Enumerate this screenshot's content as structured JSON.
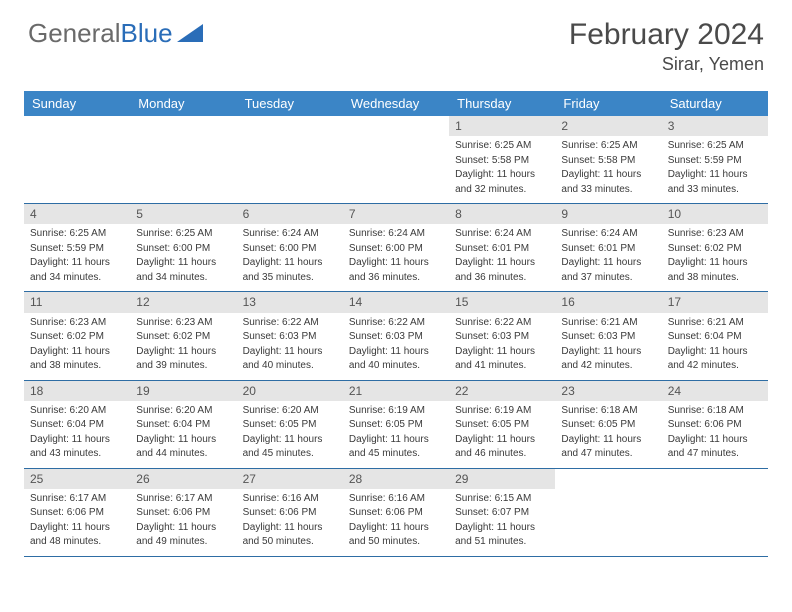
{
  "logo": {
    "text1": "General",
    "text2": "Blue"
  },
  "title": "February 2024",
  "location": "Sirar, Yemen",
  "colors": {
    "header_bg": "#3b85c6",
    "header_text": "#ffffff",
    "daynum_bg": "#e5e5e5",
    "week_border": "#2e6da4",
    "logo_gray": "#6a6a6a",
    "logo_blue": "#2a6db8"
  },
  "day_headers": [
    "Sunday",
    "Monday",
    "Tuesday",
    "Wednesday",
    "Thursday",
    "Friday",
    "Saturday"
  ],
  "weeks": [
    [
      null,
      null,
      null,
      null,
      {
        "n": "1",
        "sr": "Sunrise: 6:25 AM",
        "ss": "Sunset: 5:58 PM",
        "d1": "Daylight: 11 hours",
        "d2": "and 32 minutes."
      },
      {
        "n": "2",
        "sr": "Sunrise: 6:25 AM",
        "ss": "Sunset: 5:58 PM",
        "d1": "Daylight: 11 hours",
        "d2": "and 33 minutes."
      },
      {
        "n": "3",
        "sr": "Sunrise: 6:25 AM",
        "ss": "Sunset: 5:59 PM",
        "d1": "Daylight: 11 hours",
        "d2": "and 33 minutes."
      }
    ],
    [
      {
        "n": "4",
        "sr": "Sunrise: 6:25 AM",
        "ss": "Sunset: 5:59 PM",
        "d1": "Daylight: 11 hours",
        "d2": "and 34 minutes."
      },
      {
        "n": "5",
        "sr": "Sunrise: 6:25 AM",
        "ss": "Sunset: 6:00 PM",
        "d1": "Daylight: 11 hours",
        "d2": "and 34 minutes."
      },
      {
        "n": "6",
        "sr": "Sunrise: 6:24 AM",
        "ss": "Sunset: 6:00 PM",
        "d1": "Daylight: 11 hours",
        "d2": "and 35 minutes."
      },
      {
        "n": "7",
        "sr": "Sunrise: 6:24 AM",
        "ss": "Sunset: 6:00 PM",
        "d1": "Daylight: 11 hours",
        "d2": "and 36 minutes."
      },
      {
        "n": "8",
        "sr": "Sunrise: 6:24 AM",
        "ss": "Sunset: 6:01 PM",
        "d1": "Daylight: 11 hours",
        "d2": "and 36 minutes."
      },
      {
        "n": "9",
        "sr": "Sunrise: 6:24 AM",
        "ss": "Sunset: 6:01 PM",
        "d1": "Daylight: 11 hours",
        "d2": "and 37 minutes."
      },
      {
        "n": "10",
        "sr": "Sunrise: 6:23 AM",
        "ss": "Sunset: 6:02 PM",
        "d1": "Daylight: 11 hours",
        "d2": "and 38 minutes."
      }
    ],
    [
      {
        "n": "11",
        "sr": "Sunrise: 6:23 AM",
        "ss": "Sunset: 6:02 PM",
        "d1": "Daylight: 11 hours",
        "d2": "and 38 minutes."
      },
      {
        "n": "12",
        "sr": "Sunrise: 6:23 AM",
        "ss": "Sunset: 6:02 PM",
        "d1": "Daylight: 11 hours",
        "d2": "and 39 minutes."
      },
      {
        "n": "13",
        "sr": "Sunrise: 6:22 AM",
        "ss": "Sunset: 6:03 PM",
        "d1": "Daylight: 11 hours",
        "d2": "and 40 minutes."
      },
      {
        "n": "14",
        "sr": "Sunrise: 6:22 AM",
        "ss": "Sunset: 6:03 PM",
        "d1": "Daylight: 11 hours",
        "d2": "and 40 minutes."
      },
      {
        "n": "15",
        "sr": "Sunrise: 6:22 AM",
        "ss": "Sunset: 6:03 PM",
        "d1": "Daylight: 11 hours",
        "d2": "and 41 minutes."
      },
      {
        "n": "16",
        "sr": "Sunrise: 6:21 AM",
        "ss": "Sunset: 6:03 PM",
        "d1": "Daylight: 11 hours",
        "d2": "and 42 minutes."
      },
      {
        "n": "17",
        "sr": "Sunrise: 6:21 AM",
        "ss": "Sunset: 6:04 PM",
        "d1": "Daylight: 11 hours",
        "d2": "and 42 minutes."
      }
    ],
    [
      {
        "n": "18",
        "sr": "Sunrise: 6:20 AM",
        "ss": "Sunset: 6:04 PM",
        "d1": "Daylight: 11 hours",
        "d2": "and 43 minutes."
      },
      {
        "n": "19",
        "sr": "Sunrise: 6:20 AM",
        "ss": "Sunset: 6:04 PM",
        "d1": "Daylight: 11 hours",
        "d2": "and 44 minutes."
      },
      {
        "n": "20",
        "sr": "Sunrise: 6:20 AM",
        "ss": "Sunset: 6:05 PM",
        "d1": "Daylight: 11 hours",
        "d2": "and 45 minutes."
      },
      {
        "n": "21",
        "sr": "Sunrise: 6:19 AM",
        "ss": "Sunset: 6:05 PM",
        "d1": "Daylight: 11 hours",
        "d2": "and 45 minutes."
      },
      {
        "n": "22",
        "sr": "Sunrise: 6:19 AM",
        "ss": "Sunset: 6:05 PM",
        "d1": "Daylight: 11 hours",
        "d2": "and 46 minutes."
      },
      {
        "n": "23",
        "sr": "Sunrise: 6:18 AM",
        "ss": "Sunset: 6:05 PM",
        "d1": "Daylight: 11 hours",
        "d2": "and 47 minutes."
      },
      {
        "n": "24",
        "sr": "Sunrise: 6:18 AM",
        "ss": "Sunset: 6:06 PM",
        "d1": "Daylight: 11 hours",
        "d2": "and 47 minutes."
      }
    ],
    [
      {
        "n": "25",
        "sr": "Sunrise: 6:17 AM",
        "ss": "Sunset: 6:06 PM",
        "d1": "Daylight: 11 hours",
        "d2": "and 48 minutes."
      },
      {
        "n": "26",
        "sr": "Sunrise: 6:17 AM",
        "ss": "Sunset: 6:06 PM",
        "d1": "Daylight: 11 hours",
        "d2": "and 49 minutes."
      },
      {
        "n": "27",
        "sr": "Sunrise: 6:16 AM",
        "ss": "Sunset: 6:06 PM",
        "d1": "Daylight: 11 hours",
        "d2": "and 50 minutes."
      },
      {
        "n": "28",
        "sr": "Sunrise: 6:16 AM",
        "ss": "Sunset: 6:06 PM",
        "d1": "Daylight: 11 hours",
        "d2": "and 50 minutes."
      },
      {
        "n": "29",
        "sr": "Sunrise: 6:15 AM",
        "ss": "Sunset: 6:07 PM",
        "d1": "Daylight: 11 hours",
        "d2": "and 51 minutes."
      },
      null,
      null
    ]
  ]
}
